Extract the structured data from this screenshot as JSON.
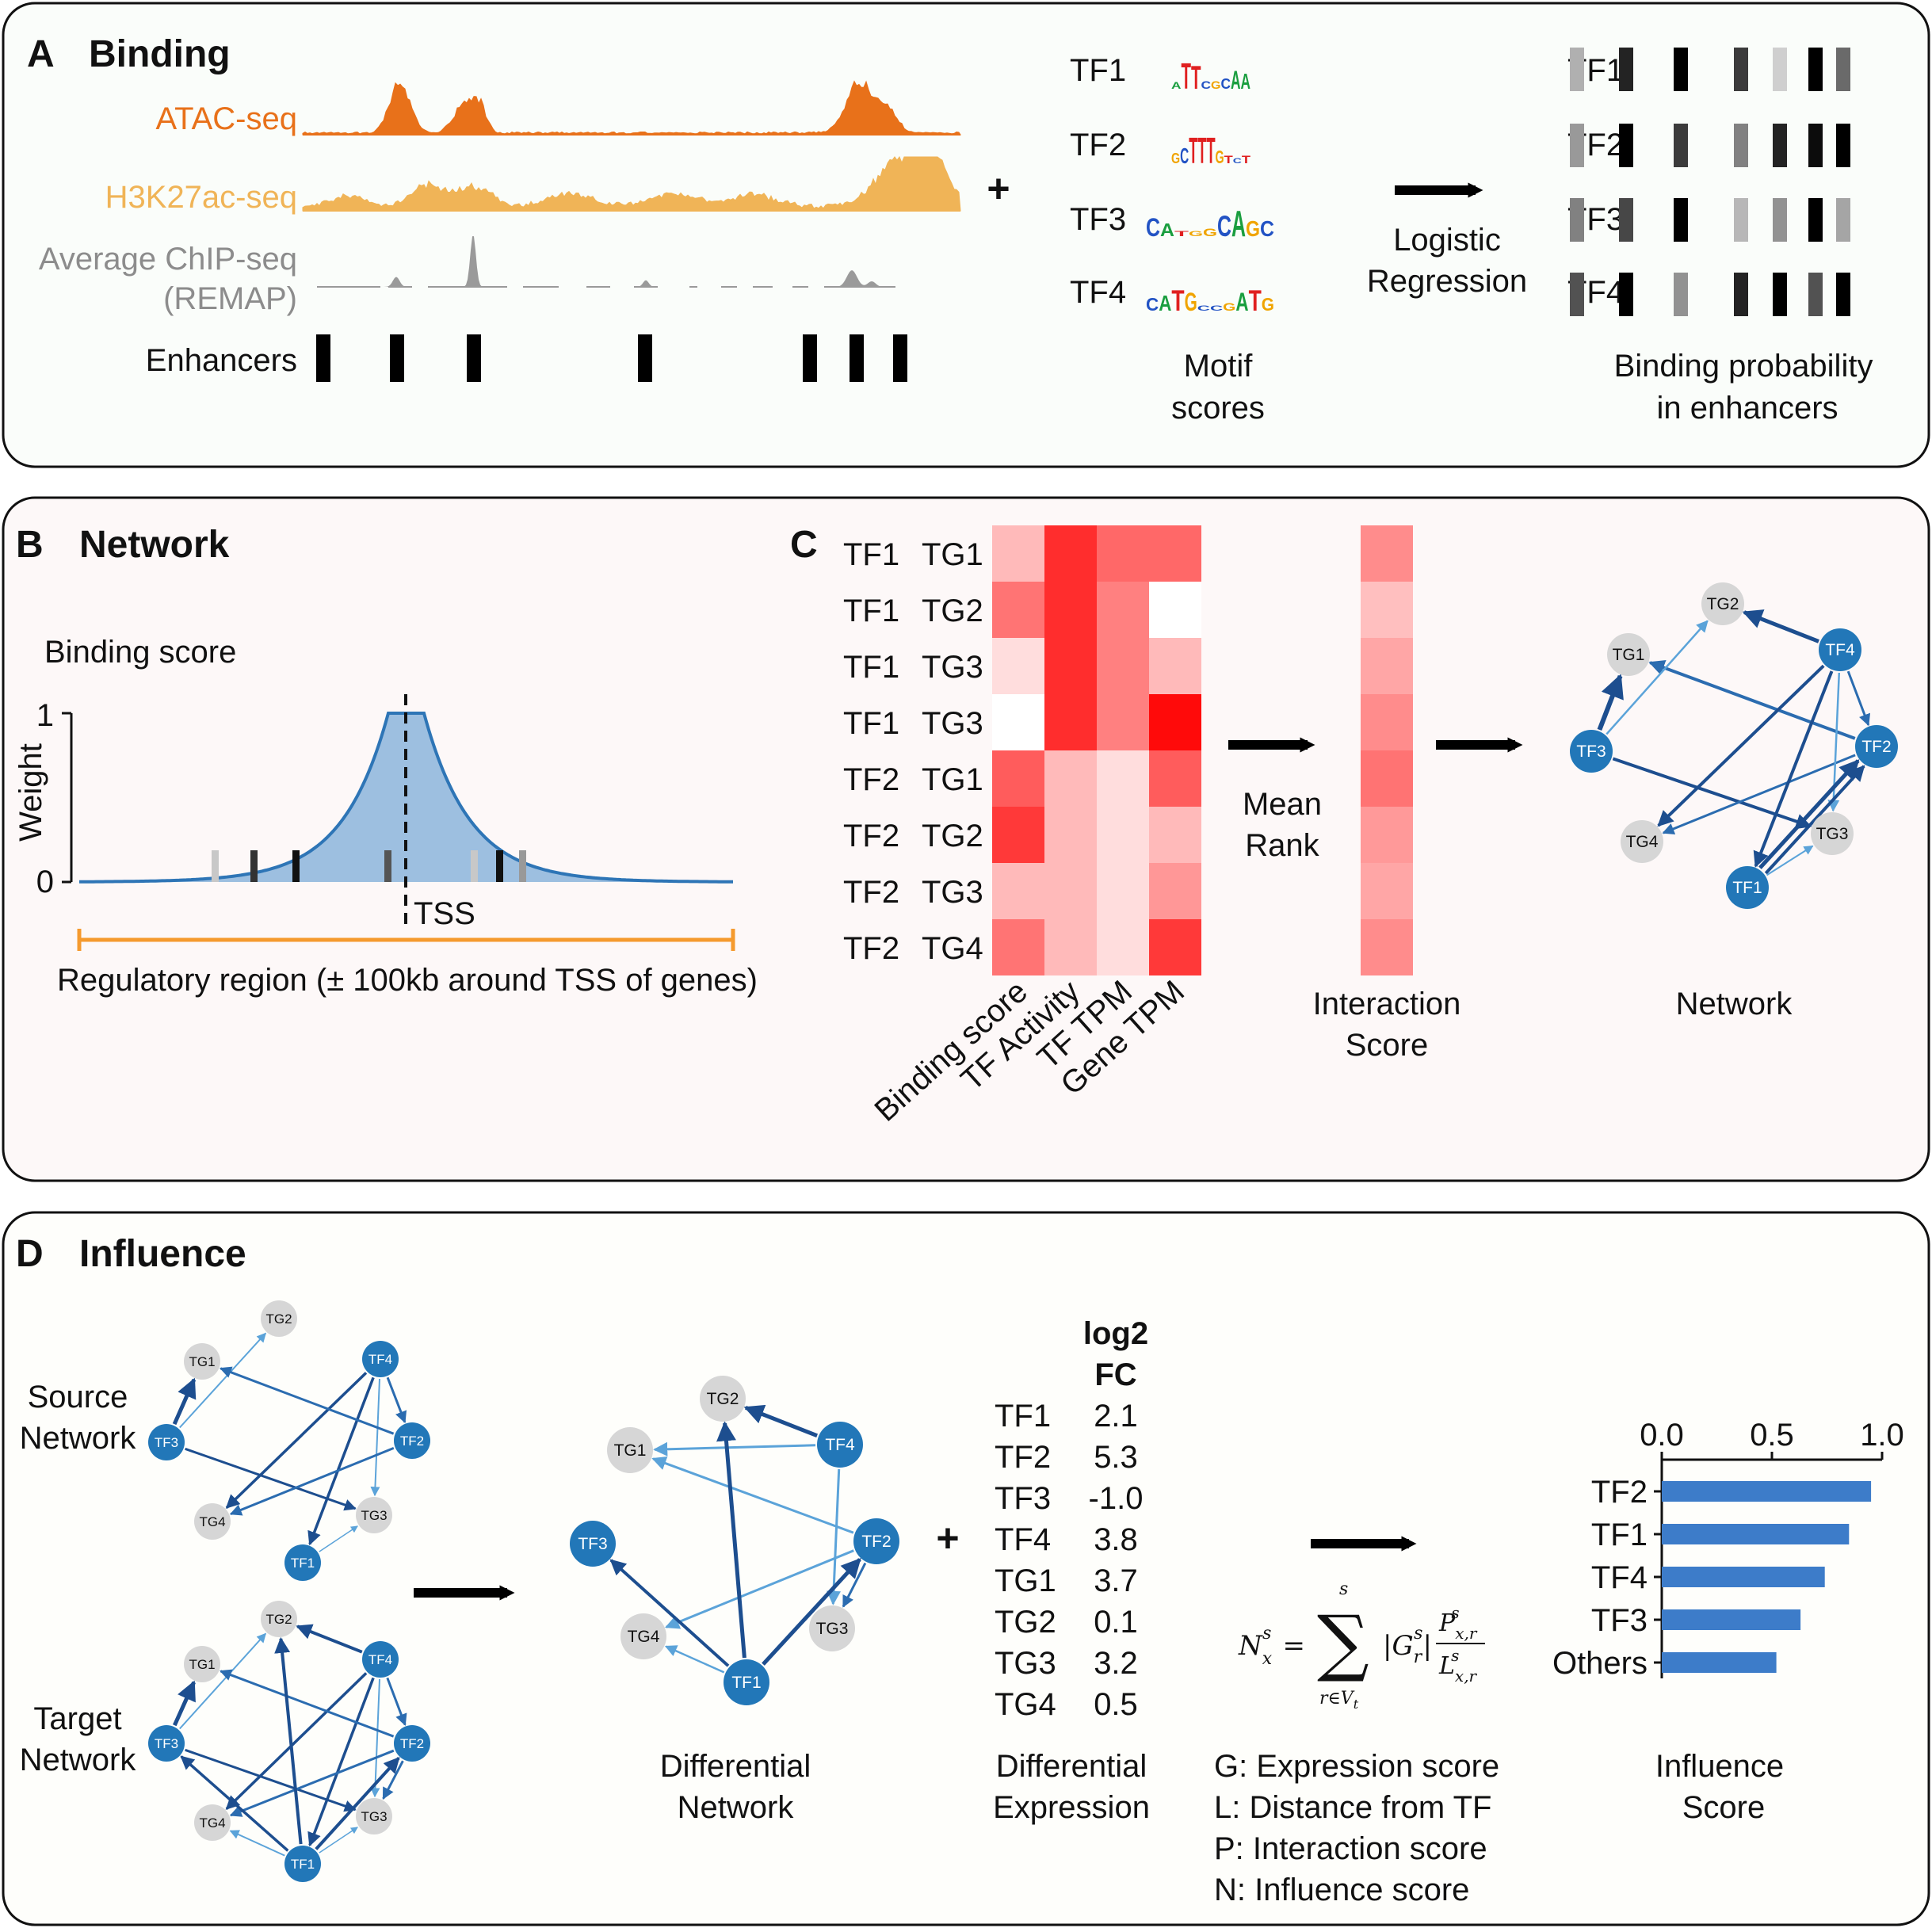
{
  "panelA": {
    "letter": "A",
    "title": "Binding",
    "tracks": [
      "ATAC-seq",
      "H3K27ac-seq",
      "Average ChIP-seq",
      "(REMAP)",
      "Enhancers"
    ],
    "plus": "+",
    "motif_tfs": [
      "TF1",
      "TF2",
      "TF3",
      "TF4"
    ],
    "motif_letters": [
      "ATTCGCAA",
      "GCTTTGTCT",
      "CATGGCAGC",
      "CATGCCGATG"
    ],
    "motif_caption": [
      "Motif",
      "scores"
    ],
    "regression_caption": [
      "Logistic",
      "Regression"
    ],
    "binding_tfs": [
      "TF1",
      "TF2",
      "TF3",
      "TF4"
    ],
    "binding_caption": [
      "Binding probability",
      "in enhancers"
    ],
    "binding_matrix": [
      [
        0.25,
        0.85,
        1.0,
        0.75,
        0.12,
        1.0,
        0.55
      ],
      [
        0.35,
        1.0,
        0.75,
        0.45,
        0.85,
        0.95,
        1.0
      ],
      [
        0.45,
        0.7,
        1.0,
        0.22,
        0.38,
        1.0,
        0.3
      ],
      [
        0.65,
        1.0,
        0.38,
        0.85,
        1.0,
        0.65,
        1.0
      ]
    ],
    "colors": {
      "atac": "#e8711a",
      "h3k27ac": "#f0b457",
      "chip": "#9a9a9a",
      "panel_bg": "#fafdfa"
    }
  },
  "panelB": {
    "letter": "B",
    "title": "Network",
    "curve_title": "Binding score",
    "ylabel": "Weight",
    "yticks": [
      "1",
      "0"
    ],
    "tss_label": "TSS",
    "region_caption": "Regulatory region (± 100kb around TSS of genes)",
    "colors": {
      "curve": "#2e75b6",
      "fill": "#9dbfe0",
      "region": "#f59a2e",
      "panel_bg": "#fdf8f8"
    }
  },
  "panelC": {
    "letter": "C",
    "row_labels": [
      [
        "TF1",
        "TG1"
      ],
      [
        "TF1",
        "TG2"
      ],
      [
        "TF1",
        "TG3"
      ],
      [
        "TF1",
        "TG3"
      ],
      [
        "TF2",
        "TG1"
      ],
      [
        "TF2",
        "TG2"
      ],
      [
        "TF2",
        "TG3"
      ],
      [
        "TF2",
        "TG4"
      ]
    ],
    "col_labels": [
      "Binding score",
      "TF Activity",
      "TF TPM",
      "Gene TPM"
    ],
    "heatmap": [
      [
        0.25,
        0.85,
        0.6,
        0.6
      ],
      [
        0.55,
        0.85,
        0.5,
        0.0
      ],
      [
        0.1,
        0.85,
        0.5,
        0.25
      ],
      [
        0.0,
        0.85,
        0.5,
        1.0
      ],
      [
        0.65,
        0.25,
        0.1,
        0.65
      ],
      [
        0.8,
        0.25,
        0.1,
        0.25
      ],
      [
        0.25,
        0.25,
        0.1,
        0.4
      ],
      [
        0.55,
        0.25,
        0.1,
        0.8
      ]
    ],
    "interaction": [
      0.45,
      0.25,
      0.35,
      0.45,
      0.55,
      0.4,
      0.35,
      0.45
    ],
    "mean_rank": [
      "Mean",
      "Rank"
    ],
    "interaction_caption": [
      "Interaction",
      "Score"
    ],
    "network_caption": "Network"
  },
  "panelD": {
    "letter": "D",
    "title": "Influence",
    "source_label": [
      "Source",
      "Network"
    ],
    "target_label": [
      "Target",
      "Network"
    ],
    "diff_caption": [
      "Differential",
      "Network"
    ],
    "plus": "+",
    "de_header": [
      "log2",
      "FC"
    ],
    "de_rows": [
      [
        "TF1",
        "2.1"
      ],
      [
        "TF2",
        "5.3"
      ],
      [
        "TF3",
        "-1.0"
      ],
      [
        "TF4",
        "3.8"
      ],
      [
        "TG1",
        "3.7"
      ],
      [
        "TG2",
        "0.1"
      ],
      [
        "TG3",
        "3.2"
      ],
      [
        "TG4",
        "0.5"
      ]
    ],
    "de_caption": [
      "Differential",
      "Expression"
    ],
    "legend": [
      "G: Expression score",
      "L: Distance from TF",
      "P: Interaction score",
      "N: Influence score"
    ],
    "influence_caption": [
      "Influence",
      "Score"
    ],
    "colors": {
      "bar": "#3d7cc9",
      "panel_bg": "#fefefb"
    }
  },
  "chart_data": {
    "type": "bar",
    "orientation": "horizontal",
    "categories": [
      "TF2",
      "TF1",
      "TF4",
      "TF3",
      "Others"
    ],
    "values": [
      0.95,
      0.85,
      0.74,
      0.63,
      0.52
    ],
    "xticks": [
      "0.0",
      "0.5",
      "1.0"
    ],
    "xlim": [
      0,
      1.0
    ],
    "xaxis_position": "top"
  },
  "node_names": {
    "tf": [
      "TF1",
      "TF2",
      "TF3",
      "TF4"
    ],
    "tg": [
      "TG1",
      "TG2",
      "TG3",
      "TG4"
    ]
  },
  "node_colors": {
    "tf": "#2277b8",
    "tg": "#d6d6d6",
    "edge_dark": "#1d4e8f",
    "edge_mid": "#2b6cb0",
    "edge_light": "#5ba3d9"
  }
}
